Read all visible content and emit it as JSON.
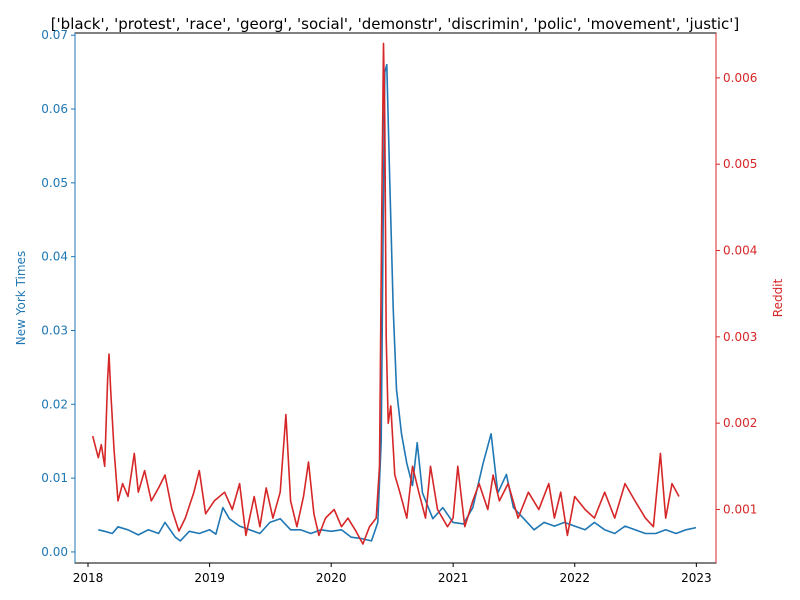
{
  "chart_data": {
    "type": "line",
    "title": "['black', 'protest', 'race', 'georg', 'social', 'demonstr', 'discrimin', 'polic', 'movement', 'justic']",
    "xlabel": "",
    "xlim": [
      "2017-11-23",
      "2023-03-01"
    ],
    "x_ticks": [
      "2018",
      "2019",
      "2020",
      "2021",
      "2022",
      "2023"
    ],
    "left_axis": {
      "label": "New York Times",
      "color": "#1f77b4",
      "ylim": [
        -0.0015,
        0.0703
      ],
      "ticks": [
        "0.00",
        "0.01",
        "0.02",
        "0.03",
        "0.04",
        "0.05",
        "0.06",
        "0.07"
      ]
    },
    "right_axis": {
      "label": "Reddit",
      "color": "#d62728",
      "ylim": [
        0.00038,
        0.00652
      ],
      "ticks": [
        "0.001",
        "0.002",
        "0.003",
        "0.004",
        "0.005",
        "0.006"
      ]
    },
    "grid": false,
    "series": [
      {
        "name": "New York Times",
        "axis": "left",
        "color": "#1f77b4",
        "points": [
          [
            "2018-02-01",
            0.003
          ],
          [
            "2018-02-20",
            0.0028
          ],
          [
            "2018-03-15",
            0.0025
          ],
          [
            "2018-04-01",
            0.0034
          ],
          [
            "2018-05-01",
            0.003
          ],
          [
            "2018-06-01",
            0.0023
          ],
          [
            "2018-07-01",
            0.003
          ],
          [
            "2018-08-01",
            0.0025
          ],
          [
            "2018-08-20",
            0.004
          ],
          [
            "2018-09-20",
            0.002
          ],
          [
            "2018-10-05",
            0.0015
          ],
          [
            "2018-11-01",
            0.0028
          ],
          [
            "2018-12-01",
            0.0025
          ],
          [
            "2019-01-01",
            0.003
          ],
          [
            "2019-01-20",
            0.0024
          ],
          [
            "2019-02-10",
            0.006
          ],
          [
            "2019-03-01",
            0.0045
          ],
          [
            "2019-04-01",
            0.0035
          ],
          [
            "2019-05-01",
            0.003
          ],
          [
            "2019-06-01",
            0.0025
          ],
          [
            "2019-07-01",
            0.004
          ],
          [
            "2019-08-01",
            0.0045
          ],
          [
            "2019-09-01",
            0.003
          ],
          [
            "2019-10-01",
            0.003
          ],
          [
            "2019-11-01",
            0.0025
          ],
          [
            "2019-12-01",
            0.003
          ],
          [
            "2020-01-01",
            0.0028
          ],
          [
            "2020-02-01",
            0.003
          ],
          [
            "2020-03-01",
            0.002
          ],
          [
            "2020-04-01",
            0.0018
          ],
          [
            "2020-05-01",
            0.0015
          ],
          [
            "2020-05-20",
            0.004
          ],
          [
            "2020-05-30",
            0.015
          ],
          [
            "2020-06-05",
            0.045
          ],
          [
            "2020-06-10",
            0.065
          ],
          [
            "2020-06-16",
            0.066
          ],
          [
            "2020-06-25",
            0.05
          ],
          [
            "2020-07-05",
            0.033
          ],
          [
            "2020-07-15",
            0.022
          ],
          [
            "2020-07-30",
            0.016
          ],
          [
            "2020-08-15",
            0.012
          ],
          [
            "2020-09-01",
            0.009
          ],
          [
            "2020-09-15",
            0.0148
          ],
          [
            "2020-10-01",
            0.008
          ],
          [
            "2020-11-01",
            0.0045
          ],
          [
            "2020-12-01",
            0.006
          ],
          [
            "2021-01-01",
            0.004
          ],
          [
            "2021-02-01",
            0.0038
          ],
          [
            "2021-03-01",
            0.006
          ],
          [
            "2021-04-01",
            0.012
          ],
          [
            "2021-04-25",
            0.016
          ],
          [
            "2021-05-15",
            0.008
          ],
          [
            "2021-06-10",
            0.0105
          ],
          [
            "2021-07-01",
            0.006
          ],
          [
            "2021-08-01",
            0.0045
          ],
          [
            "2021-09-01",
            0.003
          ],
          [
            "2021-10-01",
            0.004
          ],
          [
            "2021-11-01",
            0.0035
          ],
          [
            "2021-12-01",
            0.004
          ],
          [
            "2022-01-01",
            0.0035
          ],
          [
            "2022-02-01",
            0.003
          ],
          [
            "2022-03-01",
            0.004
          ],
          [
            "2022-04-01",
            0.003
          ],
          [
            "2022-05-01",
            0.0025
          ],
          [
            "2022-06-01",
            0.0035
          ],
          [
            "2022-07-01",
            0.003
          ],
          [
            "2022-08-01",
            0.0025
          ],
          [
            "2022-09-01",
            0.0025
          ],
          [
            "2022-10-01",
            0.003
          ],
          [
            "2022-11-01",
            0.0025
          ],
          [
            "2022-12-01",
            0.003
          ],
          [
            "2022-12-31",
            0.0033
          ]
        ]
      },
      {
        "name": "Reddit",
        "axis": "right",
        "color": "#d62728",
        "points": [
          [
            "2018-01-15",
            0.00185
          ],
          [
            "2018-02-01",
            0.0016
          ],
          [
            "2018-02-10",
            0.00175
          ],
          [
            "2018-02-20",
            0.0015
          ],
          [
            "2018-03-01",
            0.0025
          ],
          [
            "2018-03-05",
            0.0028
          ],
          [
            "2018-03-10",
            0.0024
          ],
          [
            "2018-03-20",
            0.0017
          ],
          [
            "2018-04-01",
            0.0011
          ],
          [
            "2018-04-15",
            0.0013
          ],
          [
            "2018-05-01",
            0.00115
          ],
          [
            "2018-05-20",
            0.00165
          ],
          [
            "2018-06-01",
            0.0012
          ],
          [
            "2018-06-20",
            0.00145
          ],
          [
            "2018-07-10",
            0.0011
          ],
          [
            "2018-08-01",
            0.00125
          ],
          [
            "2018-08-20",
            0.0014
          ],
          [
            "2018-09-10",
            0.001
          ],
          [
            "2018-10-01",
            0.00075
          ],
          [
            "2018-10-20",
            0.0009
          ],
          [
            "2018-11-15",
            0.0012
          ],
          [
            "2018-12-01",
            0.00145
          ],
          [
            "2018-12-20",
            0.00095
          ],
          [
            "2019-01-15",
            0.0011
          ],
          [
            "2019-02-15",
            0.0012
          ],
          [
            "2019-03-10",
            0.001
          ],
          [
            "2019-04-01",
            0.0013
          ],
          [
            "2019-04-20",
            0.0007
          ],
          [
            "2019-05-15",
            0.00115
          ],
          [
            "2019-06-01",
            0.0008
          ],
          [
            "2019-06-20",
            0.00125
          ],
          [
            "2019-07-10",
            0.0009
          ],
          [
            "2019-08-01",
            0.0012
          ],
          [
            "2019-08-18",
            0.0021
          ],
          [
            "2019-09-01",
            0.0011
          ],
          [
            "2019-09-20",
            0.0008
          ],
          [
            "2019-10-10",
            0.00115
          ],
          [
            "2019-10-25",
            0.00155
          ],
          [
            "2019-11-10",
            0.00095
          ],
          [
            "2019-11-25",
            0.0007
          ],
          [
            "2019-12-15",
            0.0009
          ],
          [
            "2020-01-10",
            0.001
          ],
          [
            "2020-02-01",
            0.0008
          ],
          [
            "2020-02-20",
            0.0009
          ],
          [
            "2020-03-15",
            0.00075
          ],
          [
            "2020-04-05",
            0.0006
          ],
          [
            "2020-04-25",
            0.0008
          ],
          [
            "2020-05-15",
            0.0009
          ],
          [
            "2020-05-25",
            0.0015
          ],
          [
            "2020-06-01",
            0.0045
          ],
          [
            "2020-06-06",
            0.0064
          ],
          [
            "2020-06-10",
            0.0055
          ],
          [
            "2020-06-14",
            0.003
          ],
          [
            "2020-06-20",
            0.002
          ],
          [
            "2020-06-28",
            0.0022
          ],
          [
            "2020-07-10",
            0.0014
          ],
          [
            "2020-07-25",
            0.0012
          ],
          [
            "2020-08-15",
            0.0009
          ],
          [
            "2020-09-01",
            0.0015
          ],
          [
            "2020-09-20",
            0.0012
          ],
          [
            "2020-10-10",
            0.0009
          ],
          [
            "2020-10-25",
            0.0015
          ],
          [
            "2020-11-15",
            0.001
          ],
          [
            "2020-12-15",
            0.0008
          ],
          [
            "2021-01-01",
            0.0009
          ],
          [
            "2021-01-15",
            0.0015
          ],
          [
            "2021-02-05",
            0.0008
          ],
          [
            "2021-03-01",
            0.0011
          ],
          [
            "2021-03-20",
            0.0013
          ],
          [
            "2021-04-15",
            0.001
          ],
          [
            "2021-05-01",
            0.0014
          ],
          [
            "2021-05-20",
            0.0011
          ],
          [
            "2021-06-15",
            0.0013
          ],
          [
            "2021-07-15",
            0.0009
          ],
          [
            "2021-08-15",
            0.0012
          ],
          [
            "2021-09-15",
            0.001
          ],
          [
            "2021-10-15",
            0.0013
          ],
          [
            "2021-11-01",
            0.0009
          ],
          [
            "2021-11-20",
            0.0012
          ],
          [
            "2021-12-10",
            0.0007
          ],
          [
            "2022-01-01",
            0.00115
          ],
          [
            "2022-02-01",
            0.001
          ],
          [
            "2022-03-01",
            0.0009
          ],
          [
            "2022-04-01",
            0.0012
          ],
          [
            "2022-05-01",
            0.0009
          ],
          [
            "2022-06-01",
            0.0013
          ],
          [
            "2022-07-01",
            0.0011
          ],
          [
            "2022-08-01",
            0.0009
          ],
          [
            "2022-08-25",
            0.0008
          ],
          [
            "2022-09-15",
            0.00165
          ],
          [
            "2022-10-01",
            0.0009
          ],
          [
            "2022-10-20",
            0.0013
          ],
          [
            "2022-11-10",
            0.00115
          ]
        ]
      }
    ]
  }
}
